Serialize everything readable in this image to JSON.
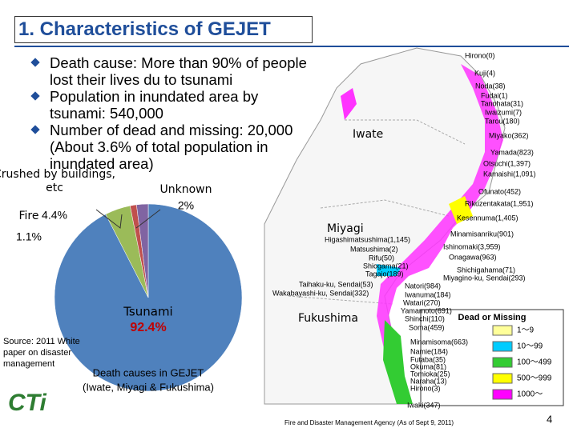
{
  "header": {
    "title": "1. Characteristics of GEJET"
  },
  "bullets": [
    "Death cause: More than 90% of people lost their lives du to tsunami",
    "Population in inundated area by tsunami: 540,000",
    "Number of dead and missing: 20,000 (About 3.6% of total population in inundated area)"
  ],
  "chart_data": {
    "type": "pie",
    "categories": [
      "Tsunami",
      "Crushed by buildings, etc",
      "Fire",
      "Unknown"
    ],
    "values": [
      92.4,
      4.4,
      1.1,
      2
    ],
    "value_labels": [
      "92.4%",
      "4.4%",
      "1.1%",
      "2%"
    ],
    "colors": [
      "#4f81bd",
      "#9bbb59",
      "#c0504d",
      "#8064a2"
    ],
    "caption": [
      "Death causes in GEJET",
      "(Iwate, Miyagi & Fukushima)"
    ]
  },
  "source": "Source: 2011 White paper on disaster management",
  "logo": "CTi",
  "map": {
    "regions": [
      "Iwate",
      "Miyagi",
      "Fukushima"
    ],
    "labels": [
      "Hirono(0)",
      "Kuji(4)",
      "Noda(38)",
      "Fudai(1)",
      "Tanohata(31)",
      "Iwaizumi(7)",
      "Tarou(180)",
      "Miyako(362)",
      "Yamada(823)",
      "Otsuchi(1,397)",
      "Kamaishi(1,091)",
      "Ofunato(452)",
      "Rikuzentakata(1,951)",
      "Kesennuma(1,405)",
      "Minamisanriku(901)",
      "Ishinomaki(3,959)",
      "Onagawa(963)",
      "Shichigahama(71)",
      "Miyagino-ku, Sendai(293)",
      "Higashimatsushima(1,145)",
      "Matsushima(2)",
      "Rifu(50)",
      "Shiogama(21)",
      "Tagajo(189)",
      "Taihaku-ku, Sendai(53)",
      "Wakabayashi-ku, Sendai(332)",
      "Natori(984)",
      "Iwanuma(184)",
      "Watari(270)",
      "Yamamoto(691)",
      "Shinchi(110)",
      "Soma(459)",
      "Minamisoma(663)",
      "Namie(184)",
      "Futaba(35)",
      "Okuma(81)",
      "Tomioka(25)",
      "Naraha(13)",
      "Hirono(3)",
      "Iwaki(347)"
    ],
    "legend": {
      "title": "Dead or Missing",
      "items": [
        {
          "label": "1～9",
          "color": "#ffff99"
        },
        {
          "label": "10～99",
          "color": "#00ccff"
        },
        {
          "label": "100～499",
          "color": "#33cc33"
        },
        {
          "label": "500～999",
          "color": "#ffff00"
        },
        {
          "label": "1000～",
          "color": "#ff00ff"
        }
      ]
    },
    "source": "Fire and Disaster Management Agency (As of Sept 9, 2011)"
  },
  "page_number": "4"
}
